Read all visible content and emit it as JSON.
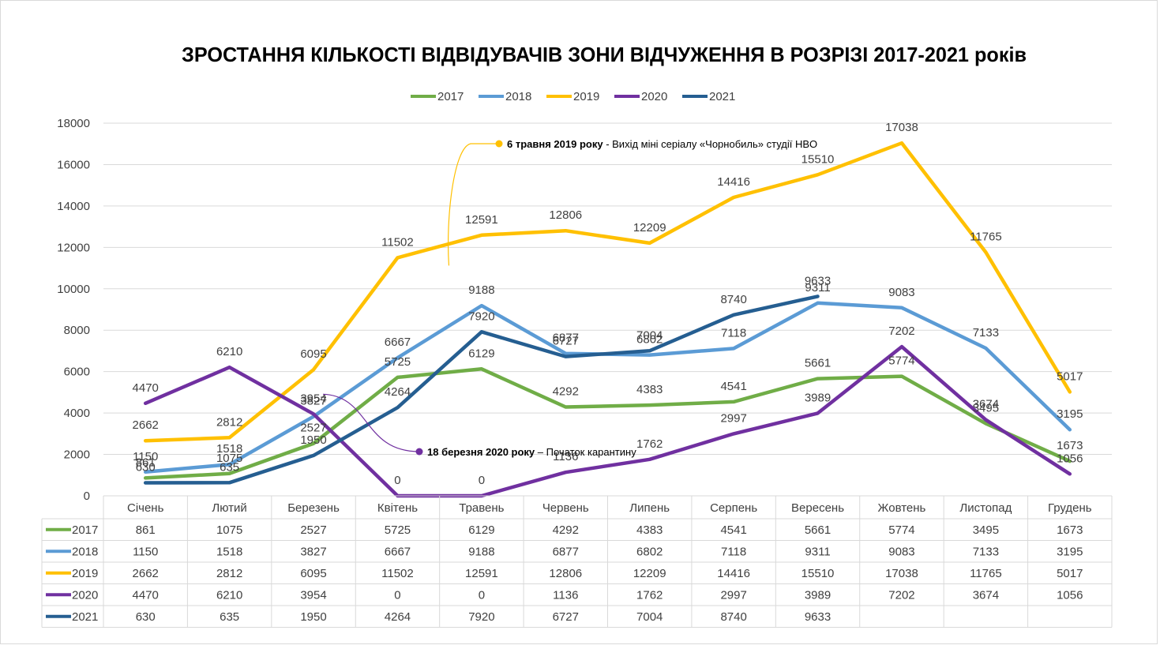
{
  "chart_data": {
    "type": "line",
    "title": "ЗРОСТАННЯ КІЛЬКОСТІ ВІДВІДУВАЧІВ ЗОНИ ВІДЧУЖЕННЯ В РОЗРІЗІ 2017-2021 років",
    "categories": [
      "Січень",
      "Лютий",
      "Березень",
      "Квітень",
      "Травень",
      "Червень",
      "Липень",
      "Серпень",
      "Вересень",
      "Жовтень",
      "Листопад",
      "Грудень"
    ],
    "ylim": [
      0,
      18000
    ],
    "yticks": [
      0,
      2000,
      4000,
      6000,
      8000,
      10000,
      12000,
      14000,
      16000,
      18000
    ],
    "grid": true,
    "legend": "top-center",
    "data_table": true,
    "series": [
      {
        "name": "2017",
        "color": "#70AD47",
        "values": [
          861,
          1075,
          2527,
          5725,
          6129,
          4292,
          4383,
          4541,
          5661,
          5774,
          3495,
          1673
        ]
      },
      {
        "name": "2018",
        "color": "#5B9BD5",
        "values": [
          1150,
          1518,
          3827,
          6667,
          9188,
          6877,
          6802,
          7118,
          9311,
          9083,
          7133,
          3195
        ]
      },
      {
        "name": "2019",
        "color": "#FFC000",
        "values": [
          2662,
          2812,
          6095,
          11502,
          12591,
          12806,
          12209,
          14416,
          15510,
          17038,
          11765,
          5017
        ]
      },
      {
        "name": "2020",
        "color": "#7030A0",
        "values": [
          4470,
          6210,
          3954,
          0,
          0,
          1136,
          1762,
          2997,
          3989,
          7202,
          3674,
          1056
        ]
      },
      {
        "name": "2021",
        "color": "#255E91",
        "values": [
          630,
          635,
          1950,
          4264,
          7920,
          6727,
          7004,
          8740,
          9633,
          null,
          null,
          null
        ]
      }
    ],
    "annotations": [
      {
        "series": "2019",
        "category": "Квітень",
        "value": 11502,
        "bold": "6 травня 2019 року",
        "text": " - Вихід міні серіалу «Чорнобиль» студії HBO"
      },
      {
        "series": "2020",
        "category": "Березень",
        "value": 3954,
        "bold": "18 березня 2020 року",
        "text": " – Початок карантину"
      }
    ]
  }
}
